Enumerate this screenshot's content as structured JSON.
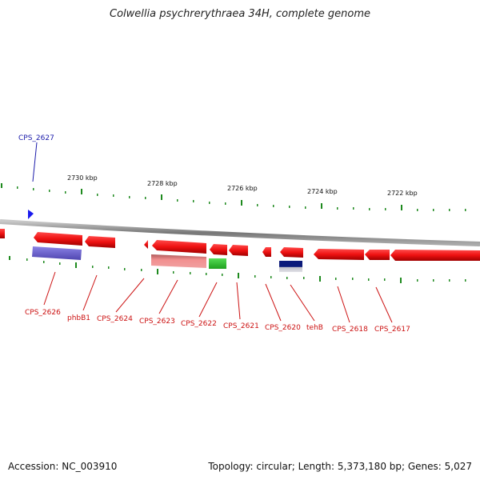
{
  "title": "Colwellia psychrerythraea 34H, complete genome",
  "accession": "Accession: NC_003910",
  "summary": "Topology: circular; Length: 5,373,180 bp; Genes: 5,027",
  "scale_labels": [
    "2730 kbp",
    "2728 kbp",
    "2726 kbp",
    "2724 kbp",
    "2722 kbp"
  ],
  "top_gene_labels": [
    "CPS_2627"
  ],
  "bottom_gene_labels": [
    "CPS_2626",
    "phbB1",
    "CPS_2624",
    "CPS_2623",
    "CPS_2622",
    "CPS_2621",
    "CPS_2620",
    "tehB",
    "CPS_2618",
    "CPS_2617"
  ],
  "colors": {
    "gene": "#ee1111",
    "backbone": "#888888",
    "ticks": "#1e8a1e",
    "top_label": "#1a1aaa",
    "bottom_label": "#cc1111",
    "cog_purple": "#6a5fcc",
    "cog_pink": "#e88080",
    "cog_green": "#33cc33",
    "cog_navy": "#0b1a7a"
  }
}
